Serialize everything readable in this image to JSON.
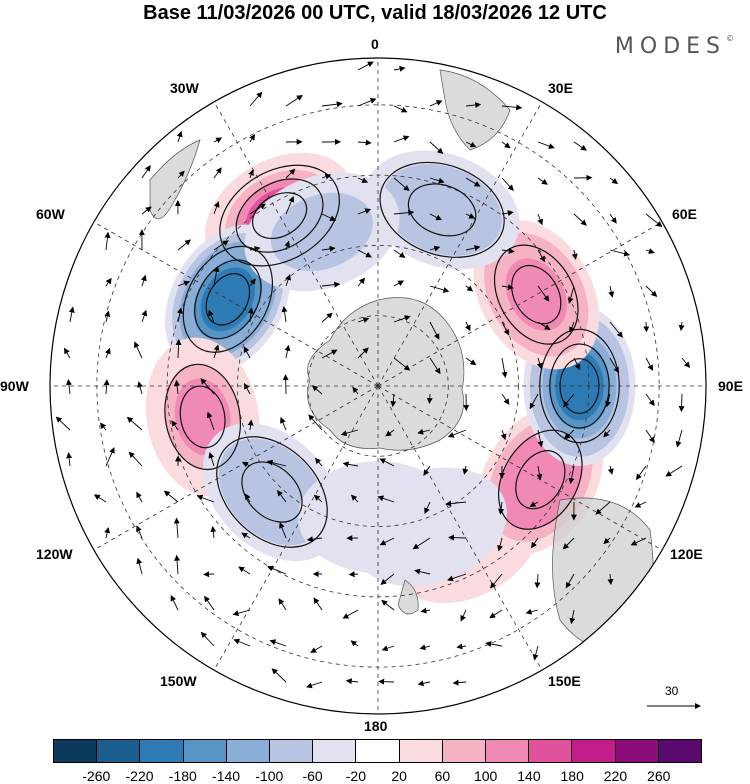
{
  "title": "Base 11/03/2026 00 UTC, valid 18/03/2026 12 UTC",
  "logo": "MODES",
  "logo_mark": "©",
  "longitude_labels": [
    "0",
    "30E",
    "60E",
    "90E",
    "120E",
    "150E",
    "180",
    "150W",
    "120W",
    "90W",
    "60W",
    "30W"
  ],
  "reference_vector": {
    "label": "30"
  },
  "colorbar": {
    "ticks": [
      "-260",
      "-220",
      "-180",
      "-140",
      "-100",
      "-60",
      "-20",
      "20",
      "60",
      "100",
      "140",
      "180",
      "220",
      "260"
    ],
    "colors": [
      "#0b3a5c",
      "#1a5d8e",
      "#2e7ab5",
      "#5594c4",
      "#8aaed5",
      "#b8c4e2",
      "#e1e1f0",
      "#ffffff",
      "#fadbdf",
      "#f5b3c3",
      "#f08ab5",
      "#e0539c",
      "#c21d8a",
      "#8c0d7a",
      "#5a0a6e"
    ]
  },
  "anomaly_centers": [
    {
      "lon": 330,
      "lat": -48,
      "value": 175
    },
    {
      "lon": 300,
      "lat": -53,
      "value": -230
    },
    {
      "lon": 260,
      "lat": -52,
      "value": 130
    },
    {
      "lon": 225,
      "lat": -58,
      "value": -110
    },
    {
      "lon": 180,
      "lat": -62,
      "value": -60
    },
    {
      "lon": 150,
      "lat": -52,
      "value": 60
    },
    {
      "lon": 120,
      "lat": -50,
      "value": 150
    },
    {
      "lon": 90,
      "lat": -47,
      "value": -220
    },
    {
      "lon": 60,
      "lat": -51,
      "value": 140
    },
    {
      "lon": 20,
      "lat": -50,
      "value": -110
    },
    {
      "lon": 340,
      "lat": -55,
      "value": -80
    },
    {
      "lon": 160,
      "lat": -58,
      "value": -50
    }
  ]
}
